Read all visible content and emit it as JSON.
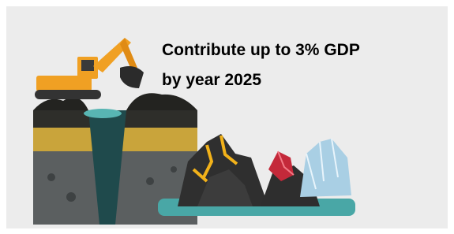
{
  "headline": {
    "lines": [
      "Contribute up to 3% GDP",
      "by year 2025"
    ]
  }
}
